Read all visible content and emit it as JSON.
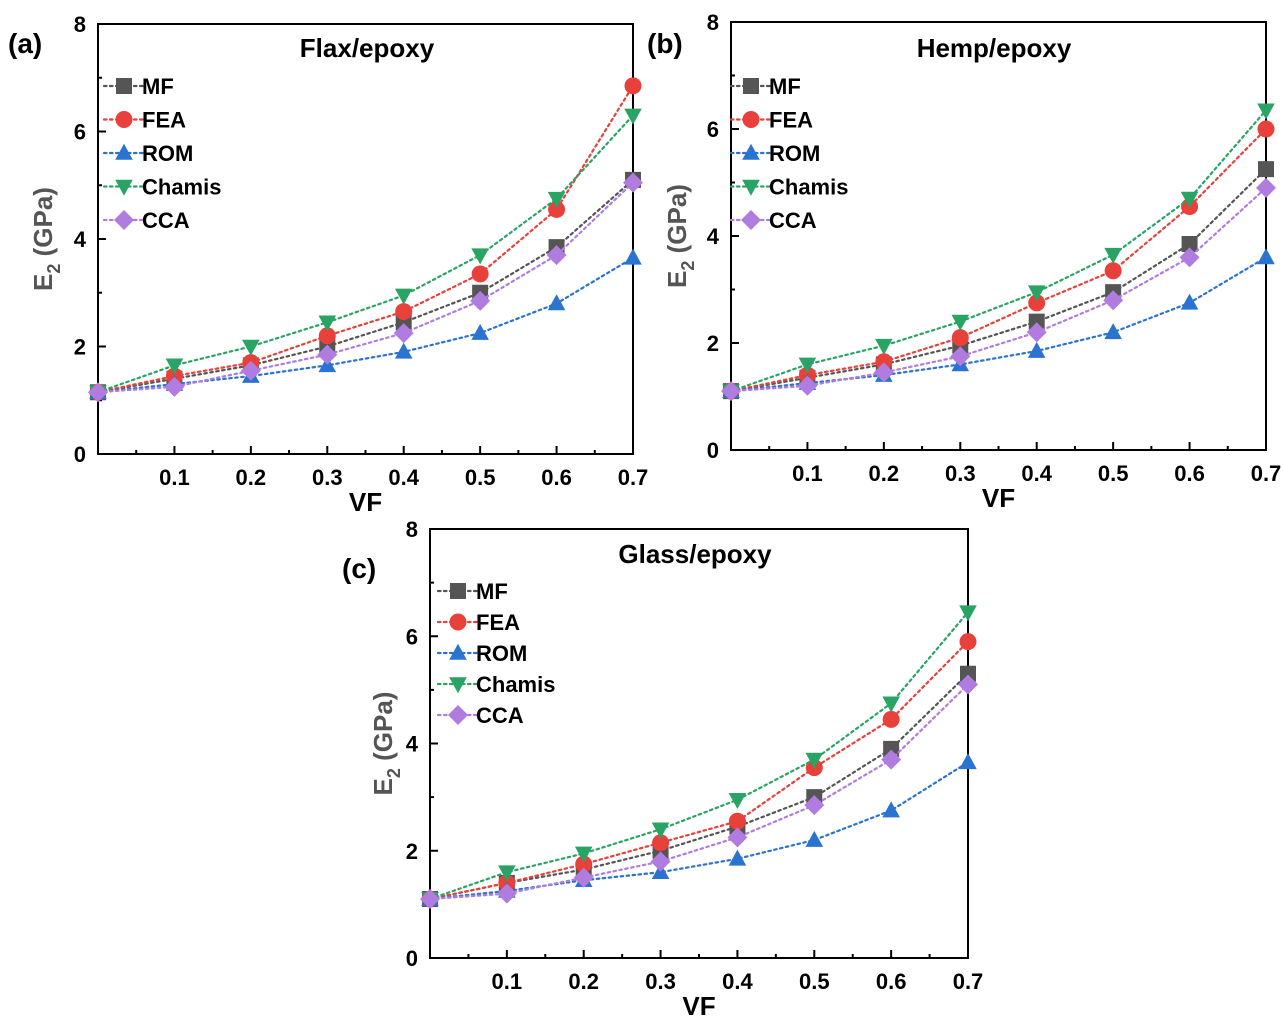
{
  "chart_data": [
    {
      "panel_label": "(a)",
      "type": "line",
      "title": "Flax/epoxy",
      "xlabel": "VF",
      "ylabel_main": "E",
      "ylabel_sub": "2",
      "ylabel_unit": " (GPa)",
      "xlim": [
        0,
        0.7
      ],
      "ylim": [
        0,
        8
      ],
      "xticks": [
        "0.1",
        "0.2",
        "0.3",
        "0.4",
        "0.5",
        "0.6",
        "0.7"
      ],
      "yticks": [
        "0",
        "2",
        "4",
        "6",
        "8"
      ],
      "x": [
        0,
        0.1,
        0.2,
        0.3,
        0.4,
        0.5,
        0.6,
        0.7
      ],
      "series": [
        {
          "name": "MF",
          "color": "#555555",
          "marker": "square",
          "values": [
            1.15,
            1.4,
            1.65,
            2.0,
            2.45,
            3.0,
            3.85,
            5.1
          ]
        },
        {
          "name": "FEA",
          "color": "#e8403a",
          "marker": "circle",
          "values": [
            1.15,
            1.45,
            1.7,
            2.2,
            2.65,
            3.35,
            4.55,
            6.85
          ]
        },
        {
          "name": "ROM",
          "color": "#2b73d0",
          "marker": "triangle-up",
          "values": [
            1.15,
            1.3,
            1.45,
            1.65,
            1.9,
            2.25,
            2.8,
            3.65
          ]
        },
        {
          "name": "Chamis",
          "color": "#2aa464",
          "marker": "triangle-down",
          "values": [
            1.15,
            1.65,
            2.0,
            2.45,
            2.95,
            3.7,
            4.75,
            6.3
          ]
        },
        {
          "name": "CCA",
          "color": "#b07ce0",
          "marker": "diamond",
          "values": [
            1.15,
            1.25,
            1.55,
            1.85,
            2.25,
            2.85,
            3.7,
            5.05
          ]
        }
      ]
    },
    {
      "panel_label": "(b)",
      "type": "line",
      "title": "Hemp/epoxy",
      "xlabel": "VF",
      "ylabel_main": "E",
      "ylabel_sub": "2",
      "ylabel_unit": " (GPa)",
      "xlim": [
        0,
        0.7
      ],
      "ylim": [
        0,
        8
      ],
      "xticks": [
        "0.1",
        "0.2",
        "0.3",
        "0.4",
        "0.5",
        "0.6",
        "0.7"
      ],
      "yticks": [
        "0",
        "2",
        "4",
        "6",
        "8"
      ],
      "x": [
        0,
        0.1,
        0.2,
        0.3,
        0.4,
        0.5,
        0.6,
        0.7
      ],
      "series": [
        {
          "name": "MF",
          "color": "#555555",
          "marker": "square",
          "values": [
            1.1,
            1.35,
            1.6,
            1.95,
            2.4,
            2.95,
            3.85,
            5.25
          ]
        },
        {
          "name": "FEA",
          "color": "#e8403a",
          "marker": "circle",
          "values": [
            1.1,
            1.4,
            1.65,
            2.1,
            2.75,
            3.35,
            4.55,
            6.0
          ]
        },
        {
          "name": "ROM",
          "color": "#2b73d0",
          "marker": "triangle-up",
          "values": [
            1.1,
            1.25,
            1.4,
            1.6,
            1.85,
            2.2,
            2.75,
            3.6
          ]
        },
        {
          "name": "Chamis",
          "color": "#2aa464",
          "marker": "triangle-down",
          "values": [
            1.1,
            1.6,
            1.95,
            2.4,
            2.95,
            3.65,
            4.7,
            6.35
          ]
        },
        {
          "name": "CCA",
          "color": "#b07ce0",
          "marker": "diamond",
          "values": [
            1.1,
            1.2,
            1.45,
            1.75,
            2.2,
            2.8,
            3.6,
            4.9
          ]
        }
      ]
    },
    {
      "panel_label": "(c)",
      "type": "line",
      "title": "Glass/epoxy",
      "xlabel": "VF",
      "ylabel_main": "E",
      "ylabel_sub": "2",
      "ylabel_unit": " (GPa)",
      "xlim": [
        0,
        0.7
      ],
      "ylim": [
        0,
        8
      ],
      "xticks": [
        "0.1",
        "0.2",
        "0.3",
        "0.4",
        "0.5",
        "0.6",
        "0.7"
      ],
      "yticks": [
        "0",
        "2",
        "4",
        "6",
        "8"
      ],
      "x": [
        0,
        0.1,
        0.2,
        0.3,
        0.4,
        0.5,
        0.6,
        0.7
      ],
      "series": [
        {
          "name": "MF",
          "color": "#555555",
          "marker": "square",
          "values": [
            1.1,
            1.4,
            1.65,
            2.0,
            2.45,
            3.0,
            3.9,
            5.3
          ]
        },
        {
          "name": "FEA",
          "color": "#e8403a",
          "marker": "circle",
          "values": [
            1.1,
            1.4,
            1.75,
            2.15,
            2.55,
            3.55,
            4.45,
            5.9
          ]
        },
        {
          "name": "ROM",
          "color": "#2b73d0",
          "marker": "triangle-up",
          "values": [
            1.1,
            1.25,
            1.45,
            1.6,
            1.85,
            2.2,
            2.75,
            3.65
          ]
        },
        {
          "name": "Chamis",
          "color": "#2aa464",
          "marker": "triangle-down",
          "values": [
            1.1,
            1.6,
            1.95,
            2.4,
            2.95,
            3.7,
            4.75,
            6.45
          ]
        },
        {
          "name": "CCA",
          "color": "#b07ce0",
          "marker": "diamond",
          "values": [
            1.1,
            1.2,
            1.5,
            1.8,
            2.25,
            2.85,
            3.7,
            5.1
          ]
        }
      ]
    }
  ]
}
